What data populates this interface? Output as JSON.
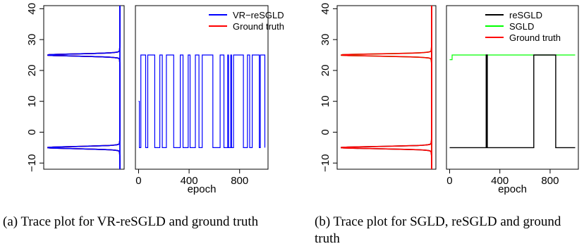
{
  "figure": {
    "caption_a": "(a) Trace plot for VR-reSGLD and ground truth",
    "caption_b": "(b) Trace plot for SGLD, reSGLD and ground truth"
  },
  "chart_data": [
    {
      "id": "a-density",
      "type": "line",
      "description": "density plot (rotated), y in data units",
      "ylim": [
        -12,
        41
      ],
      "yticks": [
        -10,
        0,
        10,
        20,
        30,
        40
      ],
      "ytick_labels": [
        "−10",
        "0",
        "10",
        "20",
        "30",
        "40"
      ],
      "series": [
        {
          "color": "#000000",
          "peaks": [
            -5,
            25
          ]
        },
        {
          "color": "#ff0000",
          "peaks": [
            -5,
            25
          ]
        },
        {
          "color": "#0000ff",
          "peaks": [
            -5,
            25
          ]
        }
      ]
    },
    {
      "id": "a-trace",
      "type": "line",
      "xlabel": "epoch",
      "xlim": [
        -25,
        1025
      ],
      "xticks": [
        0,
        400,
        800
      ],
      "xtick_labels": [
        "0",
        "400",
        "800"
      ],
      "ylim": [
        -12,
        41
      ],
      "legend": "top-right",
      "series": [
        {
          "name": "VR−reSGLD",
          "color": "#0000ff",
          "x": [
            0,
            6,
            18,
            56,
            73,
            128,
            168,
            188,
            220,
            278,
            330,
            352,
            393,
            408,
            450,
            478,
            504,
            588,
            646,
            676,
            706,
            712,
            730,
            736,
            752,
            830,
            862,
            880,
            900,
            956,
            964,
            1000
          ],
          "y": [
            10,
            -5,
            25,
            -5,
            25,
            -5,
            25,
            -5,
            25,
            -5,
            25,
            -5,
            25,
            -5,
            25,
            -5,
            25,
            -5,
            25,
            -5,
            25,
            -5,
            25,
            -5,
            25,
            -5,
            25,
            -5,
            25,
            -5,
            25,
            -5
          ]
        },
        {
          "name": "Ground truth",
          "color": "#ff0000",
          "x": [],
          "y": []
        }
      ]
    },
    {
      "id": "b-density",
      "type": "line",
      "description": "density plot (rotated), y in data units",
      "ylim": [
        -12,
        41
      ],
      "yticks": [
        -10,
        0,
        10,
        20,
        30,
        40
      ],
      "ytick_labels": [
        "−10",
        "0",
        "10",
        "20",
        "30",
        "40"
      ],
      "series": [
        {
          "color": "#000000",
          "peaks": [
            -5
          ]
        },
        {
          "color": "#00ff00",
          "peaks": [
            25
          ]
        },
        {
          "color": "#ff0000",
          "peaks": [
            -5,
            25
          ]
        }
      ]
    },
    {
      "id": "b-trace",
      "type": "line",
      "xlabel": "epoch",
      "xlim": [
        -25,
        1025
      ],
      "xticks": [
        0,
        400,
        800
      ],
      "xtick_labels": [
        "0",
        "400",
        "800"
      ],
      "ylim": [
        -12,
        41
      ],
      "legend": "top-right",
      "series": [
        {
          "name": "reSGLD",
          "color": "#000000",
          "x": [
            0,
            288,
            291,
            294,
            297,
            300,
            670,
            845,
            1000
          ],
          "y": [
            -5,
            -5,
            25,
            -5,
            25,
            -5,
            25,
            -5,
            -5
          ]
        },
        {
          "name": "SGLD",
          "color": "#00ff00",
          "x": [
            0,
            20,
            60,
            1000
          ],
          "y": [
            23.5,
            25,
            25,
            25
          ]
        },
        {
          "name": "Ground truth",
          "color": "#ff0000",
          "x": [],
          "y": []
        }
      ]
    }
  ]
}
